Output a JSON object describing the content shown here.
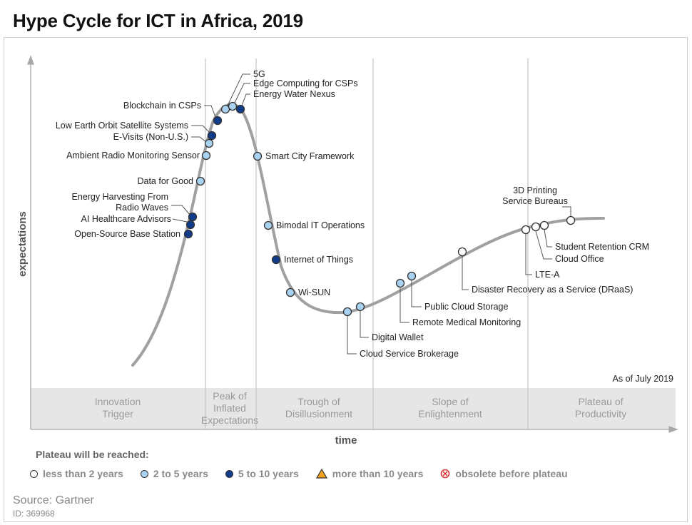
{
  "title": "Hype Cycle for ICT in Africa, 2019",
  "axes": {
    "y": "expectations",
    "x": "time"
  },
  "as_of": "As of July 2019",
  "phases": [
    {
      "lines": [
        "Innovation",
        "Trigger"
      ]
    },
    {
      "lines": [
        "Peak of",
        "Inflated",
        "Expectations"
      ]
    },
    {
      "lines": [
        "Trough of",
        "Disillusionment"
      ]
    },
    {
      "lines": [
        "Slope of",
        "Enlightenment"
      ]
    },
    {
      "lines": [
        "Plateau of",
        "Productivity"
      ]
    }
  ],
  "technologies": [
    {
      "name": "Open-Source Base Station",
      "plateau": "5 to 10 years"
    },
    {
      "name": "AI Healthcare Advisors",
      "plateau": "5 to 10 years"
    },
    {
      "name": "Energy Harvesting From Radio Waves",
      "lines": [
        "Energy Harvesting From",
        "Radio Waves"
      ],
      "plateau": "5 to 10 years"
    },
    {
      "name": "Data for Good",
      "plateau": "2 to 5 years"
    },
    {
      "name": "Ambient Radio Monitoring Sensor",
      "plateau": "2 to 5 years"
    },
    {
      "name": "E-Visits (Non-U.S.)",
      "plateau": "2 to 5 years"
    },
    {
      "name": "Low Earth Orbit Satellite Systems",
      "plateau": "5 to 10 years"
    },
    {
      "name": "Blockchain in CSPs",
      "plateau": "5 to 10 years"
    },
    {
      "name": "5G",
      "plateau": "2 to 5 years"
    },
    {
      "name": "Edge Computing for CSPs",
      "plateau": "2 to 5 years"
    },
    {
      "name": "Energy Water Nexus",
      "plateau": "5 to 10 years"
    },
    {
      "name": "Smart City Framework",
      "plateau": "2 to 5 years"
    },
    {
      "name": "Bimodal IT Operations",
      "plateau": "2 to 5 years"
    },
    {
      "name": "Internet of Things",
      "plateau": "5 to 10 years"
    },
    {
      "name": "Wi-SUN",
      "plateau": "2 to 5 years"
    },
    {
      "name": "Cloud Service Brokerage",
      "plateau": "2 to 5 years"
    },
    {
      "name": "Digital Wallet",
      "plateau": "2 to 5 years"
    },
    {
      "name": "Remote Medical Monitoring",
      "plateau": "2 to 5 years"
    },
    {
      "name": "Public Cloud Storage",
      "plateau": "2 to 5 years"
    },
    {
      "name": "Disaster Recovery as a Service (DRaaS)",
      "plateau": "less than 2 years"
    },
    {
      "name": "LTE-A",
      "plateau": "less than 2 years"
    },
    {
      "name": "Cloud Office",
      "plateau": "less than 2 years"
    },
    {
      "name": "Student Retention CRM",
      "plateau": "less than 2 years"
    },
    {
      "name": "3D Printing Service Bureaus",
      "lines": [
        "3D Printing",
        "Service Bureaus"
      ],
      "plateau": "less than 2 years"
    }
  ],
  "legend": {
    "title": "Plateau will be reached:",
    "items": [
      {
        "label": "less than 2 years",
        "color": "#ffffff",
        "shape": "circle"
      },
      {
        "label": "2 to 5 years",
        "color": "#a9d1f0",
        "shape": "circle"
      },
      {
        "label": "5 to 10 years",
        "color": "#0f3b8a",
        "shape": "circle"
      },
      {
        "label": "more than 10 years",
        "color": "#f2a31b",
        "shape": "triangle"
      },
      {
        "label": "obsolete before plateau",
        "color": "#e2363a",
        "shape": "crossed-circle"
      }
    ]
  },
  "source": "Source: Gartner",
  "doc_id": "ID: 369968"
}
